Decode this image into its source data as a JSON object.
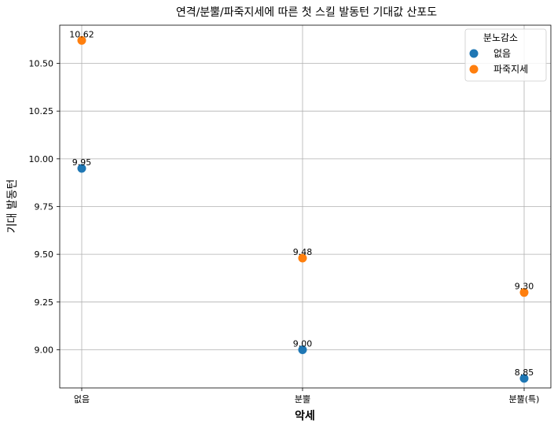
{
  "chart_data": {
    "type": "scatter",
    "title": "연격/분뿔/파죽지세에 따른 첫 스킬 발동턴 기대값 산포도",
    "xlabel": "악세",
    "ylabel": "기대 발동턴",
    "categories": [
      "없음",
      "분뿔",
      "분뿔(특)"
    ],
    "ylim": [
      8.8,
      10.7
    ],
    "yticks": [
      9.0,
      9.25,
      9.5,
      9.75,
      10.0,
      10.25,
      10.5
    ],
    "ytick_labels": [
      "9.00",
      "9.25",
      "9.50",
      "9.75",
      "10.00",
      "10.25",
      "10.50"
    ],
    "grid": true,
    "legend": {
      "title": "분노감소",
      "placement": "top-right"
    },
    "series": [
      {
        "name": "없음",
        "color": "#1f77b4",
        "values": [
          9.95,
          9.0,
          8.85
        ],
        "labels": [
          "9.95",
          "9.00",
          "8.85"
        ]
      },
      {
        "name": "파죽지세",
        "color": "#ff7f0e",
        "values": [
          10.62,
          9.48,
          9.3
        ],
        "labels": [
          "10.62",
          "9.48",
          "9.30"
        ]
      }
    ]
  }
}
